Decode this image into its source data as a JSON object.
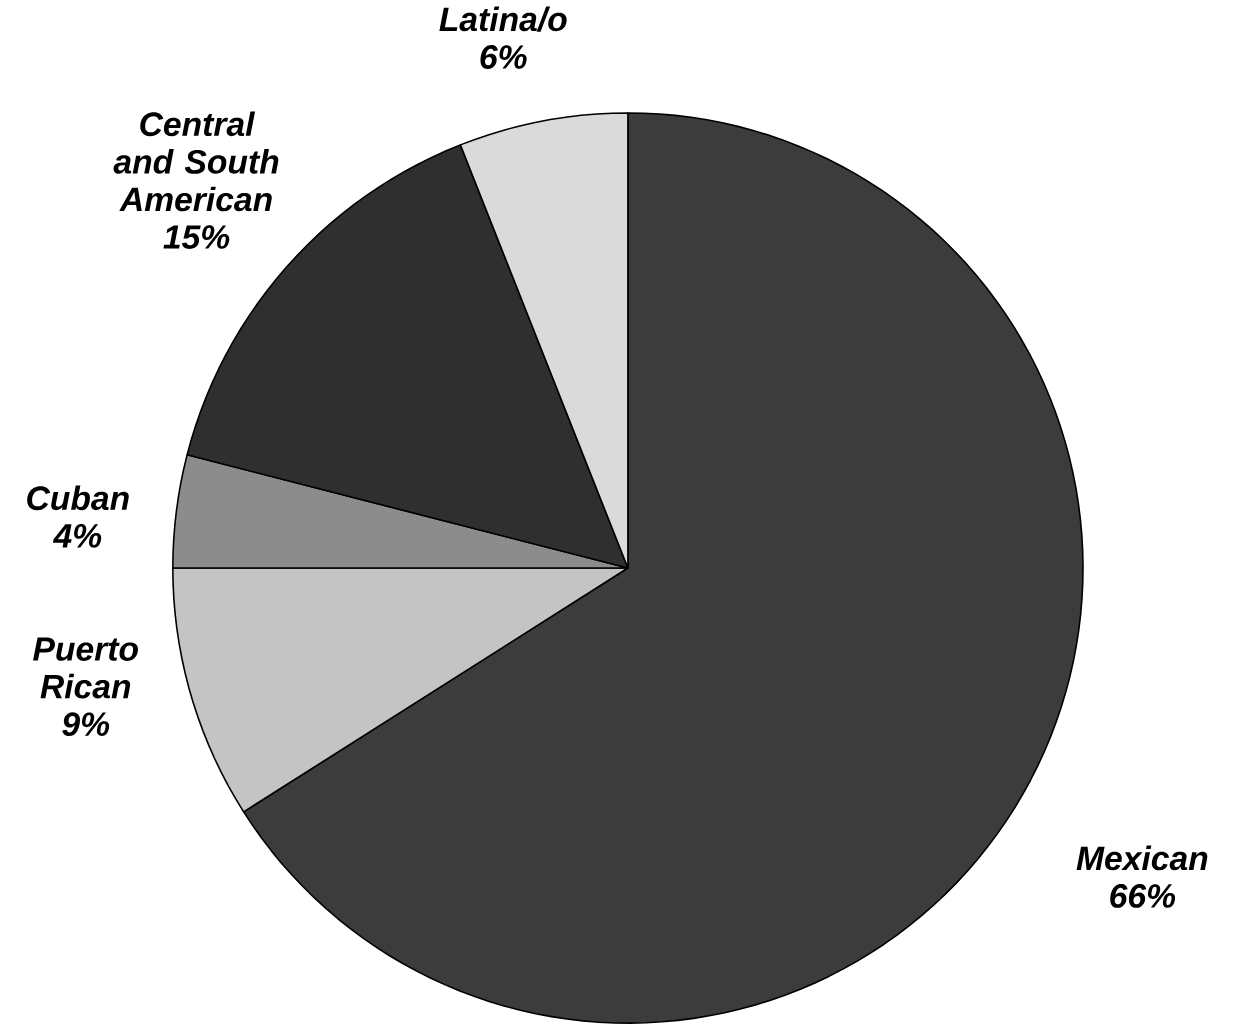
{
  "chart_data": {
    "type": "pie",
    "categories": [
      "Mexican",
      "Puerto Rican",
      "Cuban",
      "Central and South American",
      "Latina/o"
    ],
    "values": [
      66,
      9,
      4,
      15,
      6
    ],
    "value_labels": [
      "66%",
      "9%",
      "4%",
      "15%",
      "6%"
    ],
    "colors": [
      "#3c3c3c",
      "#c4c4c4",
      "#8c8c8c",
      "#2f2f2f",
      "#dadada"
    ]
  }
}
